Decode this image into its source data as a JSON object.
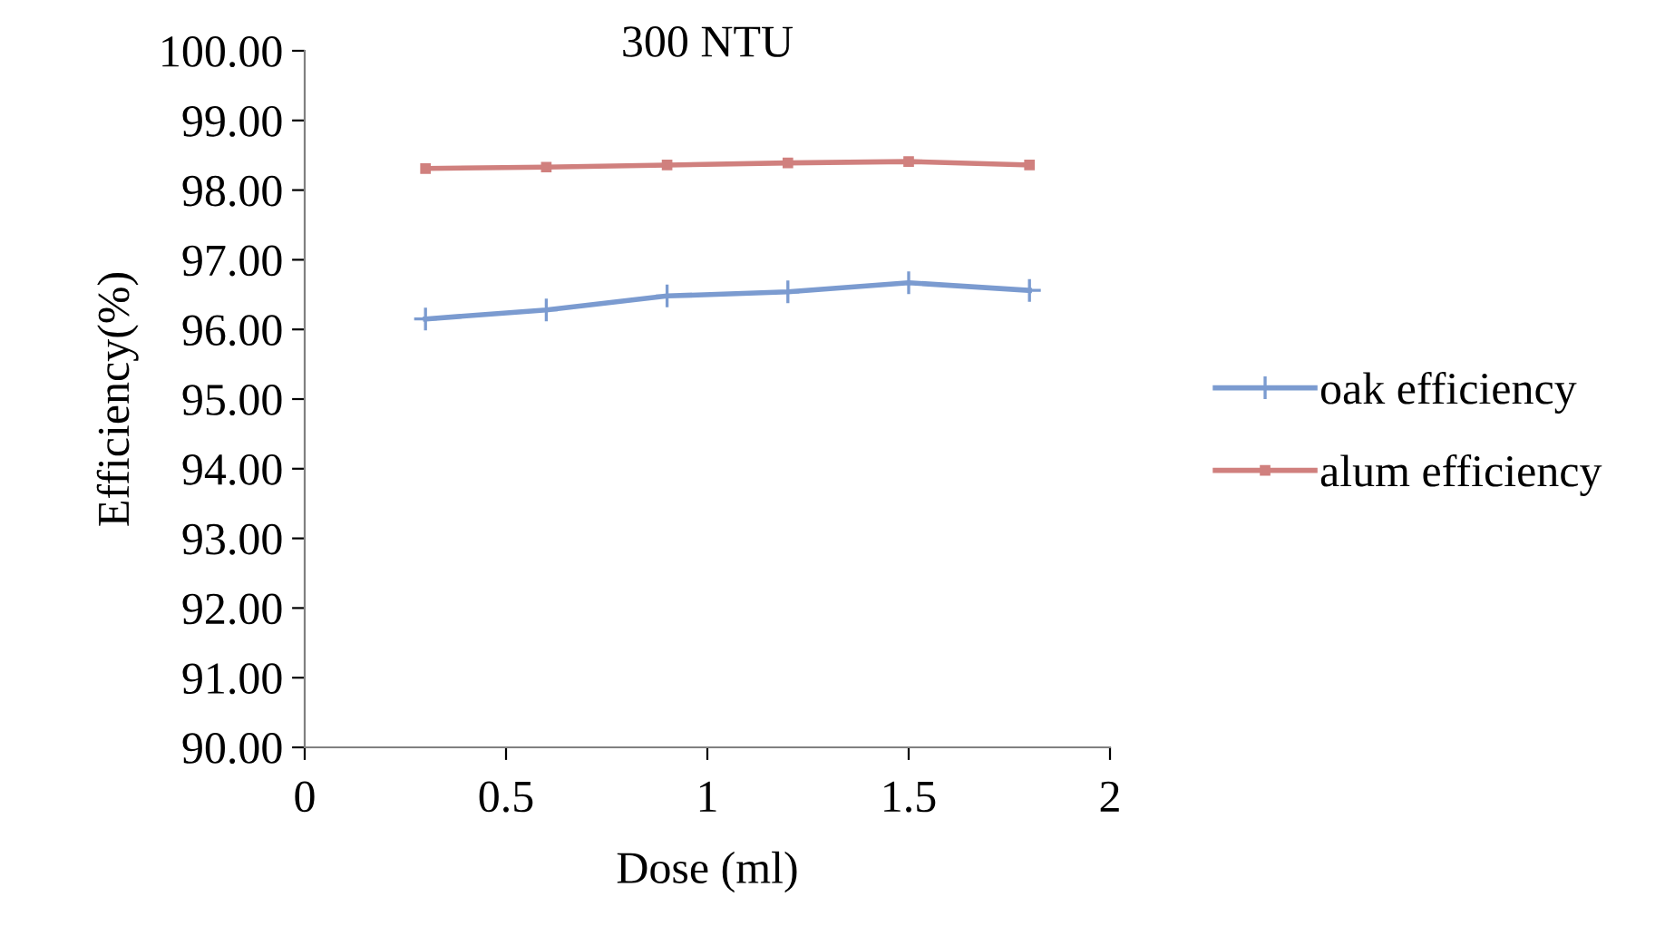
{
  "chart_data": {
    "type": "line",
    "title": "300 NTU",
    "xlabel": "Dose (ml)",
    "ylabel": "Efficiency(%)",
    "xlim": [
      0,
      2
    ],
    "xticks": [
      0,
      0.5,
      1,
      1.5,
      2
    ],
    "ylim": [
      90,
      100
    ],
    "yticks": [
      {
        "value": 90,
        "label": "90.00"
      },
      {
        "value": 91,
        "label": "91.00"
      },
      {
        "value": 92,
        "label": "92.00"
      },
      {
        "value": 93,
        "label": "93.00"
      },
      {
        "value": 94,
        "label": "94.00"
      },
      {
        "value": 95,
        "label": "95.00"
      },
      {
        "value": 96,
        "label": "96.00"
      },
      {
        "value": 97,
        "label": "97.00"
      },
      {
        "value": 98,
        "label": "98.00"
      },
      {
        "value": 99,
        "label": "99.00"
      },
      {
        "value": 100,
        "label": "100.00"
      }
    ],
    "x": [
      0.3,
      0.6,
      0.9,
      1.2,
      1.5,
      1.8
    ],
    "grid": false,
    "legend": "right",
    "line_style": "solid",
    "series": [
      {
        "name": "oak efficiency",
        "color": "#7b9bd0",
        "marker": "cross",
        "values": [
          96.15,
          96.28,
          96.48,
          96.54,
          96.67,
          96.56
        ]
      },
      {
        "name": "alum efficiency",
        "color": "#d0807e",
        "marker": "square",
        "values": [
          98.31,
          98.33,
          98.36,
          98.39,
          98.41,
          98.36
        ]
      }
    ]
  }
}
